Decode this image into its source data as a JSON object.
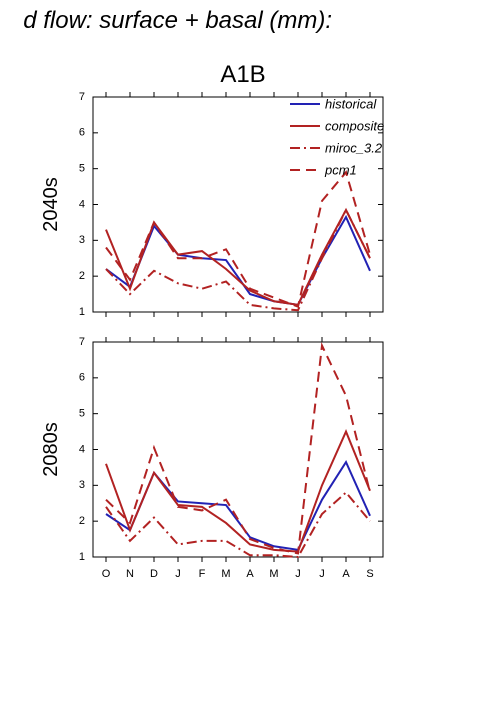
{
  "heading": "d flow: surface + basal (mm):",
  "chart_data": [
    {
      "type": "line",
      "title": "A1B",
      "ylabel": "2040s",
      "ylim": [
        1,
        7
      ],
      "yticks": [
        1,
        2,
        3,
        4,
        5,
        6,
        7
      ],
      "legend": "upper right",
      "series": [
        {
          "name": "historical",
          "color": "#2222b4",
          "style": "solid",
          "values": [
            2.2,
            1.7,
            3.4,
            2.6,
            2.5,
            2.45,
            1.5,
            1.3,
            1.2,
            2.5,
            3.65,
            2.15
          ]
        },
        {
          "name": "composite",
          "color": "#b22222",
          "style": "solid",
          "values": [
            3.3,
            1.65,
            3.5,
            2.6,
            2.7,
            2.2,
            1.6,
            1.3,
            1.2,
            2.6,
            3.85,
            2.5
          ]
        },
        {
          "name": "miroc_3.2",
          "color": "#b22222",
          "style": "dashdot",
          "values": [
            2.2,
            1.5,
            2.15,
            1.8,
            1.65,
            1.85,
            1.2,
            1.1,
            1.05,
            2.5,
            3.85,
            2.5
          ]
        },
        {
          "name": "pcm1",
          "color": "#b22222",
          "style": "dashed",
          "values": [
            2.8,
            1.9,
            3.5,
            2.5,
            2.5,
            2.75,
            1.65,
            1.4,
            1.15,
            4.1,
            4.9,
            2.6
          ]
        }
      ]
    },
    {
      "type": "line",
      "ylabel": "2080s",
      "categories": [
        "O",
        "N",
        "D",
        "J",
        "F",
        "M",
        "A",
        "M",
        "J",
        "J",
        "A",
        "S"
      ],
      "ylim": [
        1,
        7
      ],
      "yticks": [
        1,
        2,
        3,
        4,
        5,
        6,
        7
      ],
      "series": [
        {
          "name": "historical",
          "color": "#2222b4",
          "style": "solid",
          "values": [
            2.2,
            1.75,
            3.35,
            2.55,
            2.5,
            2.45,
            1.55,
            1.3,
            1.2,
            2.6,
            3.65,
            2.15
          ]
        },
        {
          "name": "composite",
          "color": "#b22222",
          "style": "solid",
          "values": [
            3.6,
            1.75,
            3.35,
            2.45,
            2.4,
            1.95,
            1.35,
            1.2,
            1.15,
            3.0,
            4.5,
            2.85
          ]
        },
        {
          "name": "miroc_3.2",
          "color": "#b22222",
          "style": "dashdot",
          "values": [
            2.4,
            1.45,
            2.1,
            1.35,
            1.45,
            1.45,
            1.05,
            1.05,
            1.0,
            2.2,
            2.8,
            2.0
          ]
        },
        {
          "name": "pcm1",
          "color": "#b22222",
          "style": "dashed",
          "values": [
            2.6,
            1.95,
            4.05,
            2.4,
            2.3,
            2.6,
            1.5,
            1.25,
            1.1,
            6.9,
            5.5,
            2.8
          ]
        }
      ]
    }
  ]
}
